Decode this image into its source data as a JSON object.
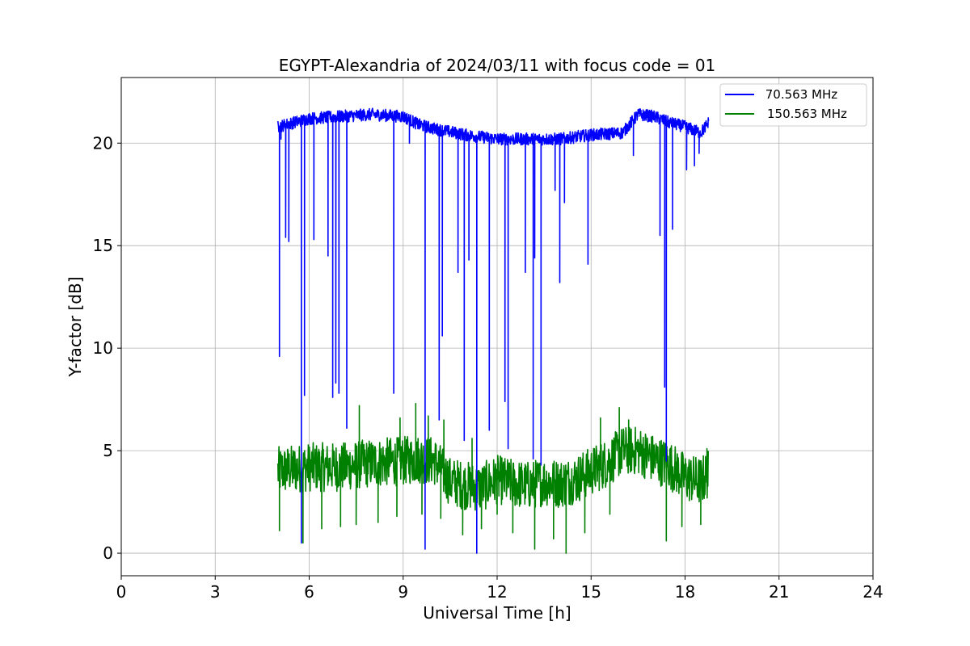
{
  "chart_data": {
    "type": "line",
    "title": "EGYPT-Alexandria of 2024/03/11 with focus code = 01",
    "xlabel": "Universal Time [h]",
    "ylabel": "Y-factor [dB]",
    "xlim": [
      0,
      24
    ],
    "ylim": [
      -1.1,
      23.2
    ],
    "xticks": [
      0,
      3,
      6,
      9,
      12,
      15,
      18,
      21,
      24
    ],
    "yticks": [
      0,
      5,
      10,
      15,
      20
    ],
    "xtick_labels": [
      "0",
      "3",
      "6",
      "9",
      "12",
      "15",
      "18",
      "21",
      "24"
    ],
    "ytick_labels": [
      "0",
      "5",
      "10",
      "15",
      "20"
    ],
    "grid": true,
    "legend_position": "top-right",
    "series": [
      {
        "name": " 70.563 MHz",
        "color": "#0000ff",
        "baseline": {
          "x": [
            5.0,
            6.0,
            7.0,
            8.0,
            9.0,
            9.5,
            10.0,
            11.0,
            12.0,
            13.0,
            14.0,
            15.0,
            16.0,
            16.5,
            17.0,
            17.5,
            18.0,
            18.5,
            18.75
          ],
          "y": [
            20.8,
            21.2,
            21.3,
            21.4,
            21.3,
            20.9,
            20.7,
            20.4,
            20.2,
            20.2,
            20.2,
            20.4,
            20.5,
            21.4,
            21.3,
            21.0,
            20.8,
            20.5,
            21.0
          ]
        },
        "dips": [
          {
            "x": 5.05,
            "y": 9.6
          },
          {
            "x": 5.1,
            "y": 20.2
          },
          {
            "x": 5.25,
            "y": 15.4
          },
          {
            "x": 5.35,
            "y": 15.2
          },
          {
            "x": 5.75,
            "y": 0.5
          },
          {
            "x": 5.85,
            "y": 7.7
          },
          {
            "x": 6.15,
            "y": 15.3
          },
          {
            "x": 6.6,
            "y": 14.5
          },
          {
            "x": 6.75,
            "y": 7.6
          },
          {
            "x": 6.85,
            "y": 8.3
          },
          {
            "x": 6.95,
            "y": 7.8
          },
          {
            "x": 7.2,
            "y": 6.1
          },
          {
            "x": 8.7,
            "y": 7.8
          },
          {
            "x": 9.2,
            "y": 20.0
          },
          {
            "x": 9.7,
            "y": 0.2
          },
          {
            "x": 10.15,
            "y": 6.5
          },
          {
            "x": 10.25,
            "y": 10.6
          },
          {
            "x": 10.75,
            "y": 13.7
          },
          {
            "x": 10.95,
            "y": 5.5
          },
          {
            "x": 11.1,
            "y": 14.3
          },
          {
            "x": 11.35,
            "y": 0.0
          },
          {
            "x": 11.75,
            "y": 6.0
          },
          {
            "x": 12.25,
            "y": 7.4
          },
          {
            "x": 12.35,
            "y": 5.1
          },
          {
            "x": 12.9,
            "y": 13.7
          },
          {
            "x": 13.15,
            "y": 4.6
          },
          {
            "x": 13.2,
            "y": 14.4
          },
          {
            "x": 13.4,
            "y": 4.3
          },
          {
            "x": 13.85,
            "y": 17.7
          },
          {
            "x": 14.0,
            "y": 13.2
          },
          {
            "x": 14.15,
            "y": 17.1
          },
          {
            "x": 14.9,
            "y": 14.1
          },
          {
            "x": 16.35,
            "y": 19.4
          },
          {
            "x": 17.2,
            "y": 15.5
          },
          {
            "x": 17.35,
            "y": 8.1
          },
          {
            "x": 17.4,
            "y": 4.5
          },
          {
            "x": 17.6,
            "y": 15.8
          },
          {
            "x": 18.05,
            "y": 18.7
          },
          {
            "x": 18.3,
            "y": 18.9
          },
          {
            "x": 18.45,
            "y": 19.5
          }
        ]
      },
      {
        "name": "150.563 MHz",
        "color": "#008000",
        "baseline": {
          "x": [
            5.0,
            6.0,
            7.0,
            8.0,
            9.0,
            9.5,
            10.0,
            10.5,
            11.0,
            11.5,
            12.0,
            12.5,
            13.0,
            13.5,
            14.0,
            14.5,
            15.0,
            15.5,
            16.0,
            16.5,
            17.0,
            17.5,
            18.0,
            18.5,
            18.75
          ],
          "y": [
            4.0,
            4.2,
            4.2,
            4.4,
            4.5,
            4.6,
            4.5,
            3.5,
            3.3,
            3.2,
            3.6,
            3.4,
            3.3,
            3.5,
            3.4,
            3.6,
            4.0,
            4.4,
            5.0,
            5.0,
            4.6,
            4.3,
            3.7,
            3.5,
            3.9
          ]
        },
        "lows": [
          {
            "x": 5.05,
            "y": 1.1
          },
          {
            "x": 5.8,
            "y": 0.5
          },
          {
            "x": 6.4,
            "y": 1.2
          },
          {
            "x": 7.0,
            "y": 1.3
          },
          {
            "x": 7.5,
            "y": 1.4
          },
          {
            "x": 8.2,
            "y": 1.5
          },
          {
            "x": 8.8,
            "y": 1.8
          },
          {
            "x": 9.6,
            "y": 1.9
          },
          {
            "x": 10.2,
            "y": 1.7
          },
          {
            "x": 10.9,
            "y": 0.9
          },
          {
            "x": 11.5,
            "y": 1.2
          },
          {
            "x": 12.0,
            "y": 1.9
          },
          {
            "x": 12.5,
            "y": 1.0
          },
          {
            "x": 13.2,
            "y": 0.2
          },
          {
            "x": 13.8,
            "y": 0.7
          },
          {
            "x": 14.2,
            "y": 0.0
          },
          {
            "x": 14.8,
            "y": 1.0
          },
          {
            "x": 15.6,
            "y": 1.9
          },
          {
            "x": 17.4,
            "y": 0.6
          },
          {
            "x": 17.9,
            "y": 1.3
          },
          {
            "x": 18.5,
            "y": 1.4
          }
        ],
        "highs": [
          {
            "x": 7.6,
            "y": 7.2
          },
          {
            "x": 8.9,
            "y": 6.6
          },
          {
            "x": 9.4,
            "y": 7.3
          },
          {
            "x": 9.8,
            "y": 6.7
          },
          {
            "x": 10.3,
            "y": 6.5
          },
          {
            "x": 11.2,
            "y": 5.6
          },
          {
            "x": 15.3,
            "y": 6.6
          },
          {
            "x": 15.9,
            "y": 7.1
          },
          {
            "x": 16.2,
            "y": 6.5
          },
          {
            "x": 18.7,
            "y": 5.1
          }
        ]
      }
    ]
  }
}
